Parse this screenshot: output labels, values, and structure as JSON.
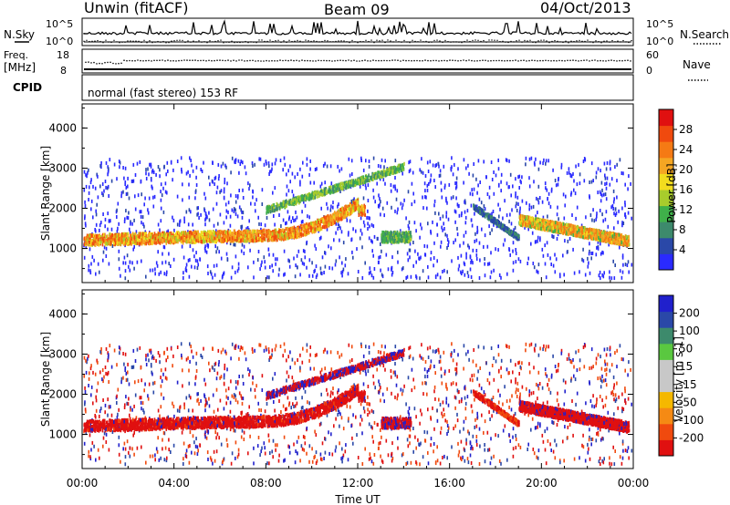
{
  "header": {
    "station": "Unwin (fitACF)",
    "beam": "Beam 09",
    "date": "04/Oct/2013"
  },
  "top_panels": {
    "nsky_label": "N.Sky",
    "nsearch_label": "N.Search",
    "noise_ticks_left": [
      "10^5",
      "10^0"
    ],
    "noise_ticks_right": [
      "10^5",
      "10^0"
    ],
    "freq_label_1": "Freq.",
    "freq_label_2": "[MHz]",
    "freq_ticks": [
      "18",
      "8"
    ],
    "nave_label": "Nave",
    "nave_ticks": [
      "60",
      "0"
    ],
    "cpid_label": "CPID",
    "cpid_text": "normal (fast stereo) 153 RF"
  },
  "colors": {
    "power": [
      "#2a2aff",
      "#2a48a8",
      "#3d8a6c",
      "#3fb04a",
      "#a8cc2c",
      "#f2dc1e",
      "#f5a623",
      "#f57a14",
      "#f04a0e",
      "#e01010"
    ],
    "velocity": [
      "#2020cc",
      "#2a48a8",
      "#3d8a6c",
      "#5ac840",
      "#c8c8c8",
      "#c8c8c8",
      "#f5b800",
      "#f58a14",
      "#f04a0e",
      "#e01010"
    ]
  },
  "chart_data": [
    {
      "type": "heatmap",
      "name": "power",
      "ylabel": "Slant Range [km]",
      "yticks": [
        "1000",
        "2000",
        "3000",
        "4000"
      ],
      "ylim": [
        150,
        4600
      ],
      "xlim": [
        0,
        24
      ],
      "colorbar_label": "Power [dB]",
      "colorbar_ticks": [
        "4",
        "8",
        "12",
        "16",
        "20",
        "24",
        "28"
      ],
      "colorbar_range": [
        0,
        30
      ]
    },
    {
      "type": "heatmap",
      "name": "velocity",
      "ylabel": "Slant Range [km]",
      "yticks": [
        "1000",
        "2000",
        "3000",
        "4000"
      ],
      "ylim": [
        150,
        4600
      ],
      "xlim": [
        0,
        24
      ],
      "xlabel": "Time UT",
      "xticks": [
        "00:00",
        "04:00",
        "08:00",
        "12:00",
        "16:00",
        "20:00",
        "00:00"
      ],
      "colorbar_label": "Velocity [m s-1]",
      "colorbar_ticks": [
        "200",
        "100",
        "50",
        "15",
        "-15",
        "-50",
        "-100",
        "-200"
      ]
    }
  ]
}
